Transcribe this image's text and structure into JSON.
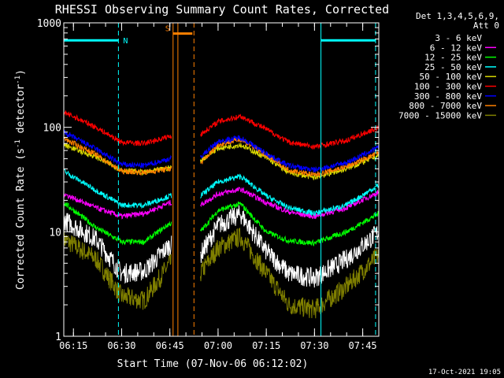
{
  "chart_data": {
    "type": "line",
    "title": "RHESSI Observing Summary Count Rates, Corrected",
    "xlabel": "Start Time (07-Nov-06 06:12:02)",
    "ylabel_main": "Corrected Count Rate (s",
    "ylabel_sup1": "-1",
    "ylabel_mid": " detector",
    "ylabel_sup2": "-1",
    "ylabel_end": ")",
    "yscale": "log",
    "ylim": [
      1,
      1000
    ],
    "xlim_minutes": [
      0,
      98
    ],
    "x_ticks": [
      {
        "minute": 3,
        "label": "06:15"
      },
      {
        "minute": 18,
        "label": "06:30"
      },
      {
        "minute": 33,
        "label": "06:45"
      },
      {
        "minute": 48,
        "label": "07:00"
      },
      {
        "minute": 63,
        "label": "07:15"
      },
      {
        "minute": 78,
        "label": "07:30"
      },
      {
        "minute": 93,
        "label": "07:45"
      }
    ],
    "y_ticks": [
      {
        "value": 1,
        "label": "1"
      },
      {
        "value": 10,
        "label": "10"
      },
      {
        "value": 100,
        "label": "100"
      },
      {
        "value": 1000,
        "label": "1000"
      }
    ],
    "legend_header": [
      "Det 1,3,4,5,6,9,",
      "Att 0"
    ],
    "legend_position": "right",
    "data_gap_minutes": [
      33.5,
      42.5
    ],
    "series": [
      {
        "name": "3 - 6 keV",
        "color": "#ffffff",
        "display_color": "#000000",
        "minute": [
          0,
          10,
          18,
          25,
          33,
          42.5,
          48,
          55,
          63,
          70,
          78,
          88,
          98
        ],
        "value": [
          13,
          8.5,
          4.0,
          4.2,
          7.5,
          6.0,
          11.5,
          14.8,
          6.5,
          4.0,
          3.6,
          5.5,
          10.0
        ]
      },
      {
        "name": "6 - 12 keV",
        "color": "#ff00ff",
        "minute": [
          0,
          10,
          18,
          25,
          33,
          42.5,
          48,
          55,
          63,
          70,
          78,
          88,
          98
        ],
        "value": [
          23,
          17,
          14,
          15,
          19,
          18,
          23,
          25.5,
          19,
          15.5,
          14,
          17,
          24
        ]
      },
      {
        "name": "12 - 25 keV",
        "color": "#00ff00",
        "minute": [
          0,
          10,
          18,
          25,
          33,
          42.5,
          48,
          55,
          63,
          70,
          78,
          88,
          98
        ],
        "value": [
          19,
          11,
          8.0,
          8.0,
          12,
          10,
          16,
          18.5,
          10,
          8.2,
          7.8,
          10,
          15
        ]
      },
      {
        "name": "25 - 50 keV",
        "color": "#00ffff",
        "minute": [
          0,
          10,
          18,
          25,
          33,
          42.5,
          48,
          55,
          63,
          70,
          78,
          88,
          98
        ],
        "value": [
          38,
          25,
          18,
          18,
          22,
          22,
          30,
          34,
          22,
          17,
          15,
          18,
          28
        ]
      },
      {
        "name": "50 - 100 keV",
        "color": "#d8d800",
        "minute": [
          0,
          10,
          18,
          25,
          33,
          42.5,
          48,
          55,
          63,
          70,
          78,
          88,
          98
        ],
        "value": [
          68,
          52,
          39,
          37,
          41,
          48,
          63,
          68,
          51,
          37,
          33,
          40,
          54
        ]
      },
      {
        "name": "100 - 300 keV",
        "color": "#ff0000",
        "minute": [
          0,
          10,
          18,
          25,
          33,
          42.5,
          48,
          55,
          63,
          70,
          78,
          88,
          98
        ],
        "value": [
          140,
          100,
          72,
          70,
          82,
          85,
          113,
          128,
          96,
          72,
          65,
          75,
          100
        ]
      },
      {
        "name": "300 - 800 keV",
        "color": "#0000ff",
        "minute": [
          0,
          10,
          18,
          25,
          33,
          42.5,
          48,
          55,
          63,
          70,
          78,
          88,
          98
        ],
        "value": [
          90,
          62,
          44,
          43,
          50,
          52,
          73,
          80,
          56,
          43,
          39,
          46,
          64
        ]
      },
      {
        "name": "800 - 7000 keV",
        "color": "#ff8000",
        "minute": [
          0,
          10,
          18,
          25,
          33,
          42.5,
          48,
          55,
          63,
          70,
          78,
          88,
          98
        ],
        "value": [
          78,
          55,
          38,
          37,
          40,
          45,
          68,
          77,
          54,
          39,
          35,
          42,
          57
        ]
      },
      {
        "name": "7000 - 15000 keV",
        "color": "#808000",
        "minute": [
          0,
          10,
          18,
          25,
          33,
          42.5,
          48,
          55,
          63,
          70,
          78,
          88,
          98
        ],
        "value": [
          8.5,
          5.5,
          2.4,
          2.2,
          5.0,
          4.0,
          7.0,
          9.0,
          4.0,
          2.0,
          1.8,
          3.0,
          6.0
        ]
      }
    ],
    "annotations": [
      {
        "type": "span",
        "label": "N",
        "color": "#00ffff",
        "from_minute": 0,
        "to_minute": 17,
        "value": 680
      },
      {
        "type": "span",
        "label": "",
        "color": "#00ffff",
        "from_minute": 80,
        "to_minute": 97,
        "value": 680
      },
      {
        "type": "span",
        "label": "S",
        "color": "#ff8000",
        "from_minute": 34,
        "to_minute": 40,
        "value": 790
      }
    ],
    "vertical_markers": [
      {
        "minute": 0,
        "color": "#00ffff",
        "style": "solid"
      },
      {
        "minute": 17,
        "color": "#00ffff",
        "style": "dashed"
      },
      {
        "minute": 80,
        "color": "#00ffff",
        "style": "solid"
      },
      {
        "minute": 97,
        "color": "#00ffff",
        "style": "dashed"
      },
      {
        "minute": 34,
        "color": "#ff8000",
        "style": "solid"
      },
      {
        "minute": 35.5,
        "color": "#ff8000",
        "style": "solid"
      },
      {
        "minute": 40.5,
        "color": "#ff8000",
        "style": "dashed"
      }
    ],
    "footer_timestamp": "17-Oct-2021 19:05"
  }
}
